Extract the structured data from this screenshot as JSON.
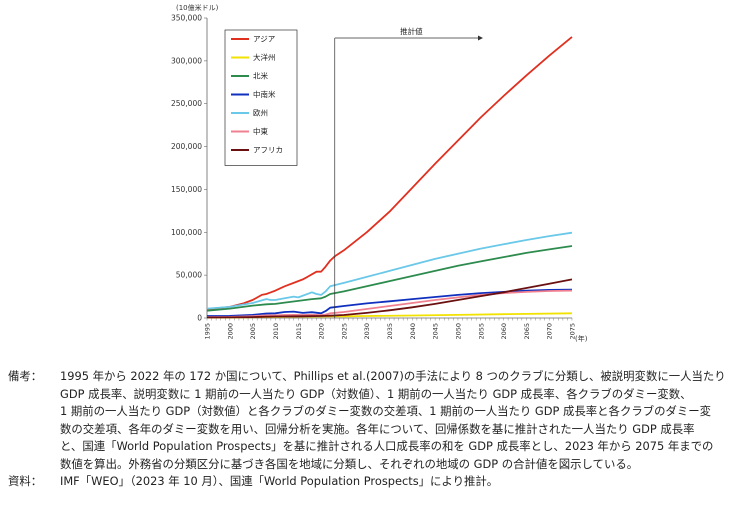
{
  "chart_data": {
    "type": "line",
    "y_unit": "(10億米ドル)",
    "x_unit": "(年)",
    "ylim": [
      0,
      350000
    ],
    "y_ticks": [
      "0",
      "50,000",
      "100,000",
      "150,000",
      "200,000",
      "250,000",
      "300,000",
      "350,000"
    ],
    "y_tick_values": [
      0,
      50000,
      100000,
      150000,
      200000,
      250000,
      300000,
      350000
    ],
    "xlim": [
      1995,
      2075
    ],
    "x_ticks": [
      "1995",
      "2000",
      "2005",
      "2010",
      "2015",
      "2020",
      "2025",
      "2030",
      "2035",
      "2040",
      "2045",
      "2050",
      "2055",
      "2060",
      "2065",
      "2070",
      "2075"
    ],
    "grid": false,
    "legend_placement": "top-left",
    "annotation": {
      "label": "推計値",
      "x": 2023
    },
    "series": [
      {
        "name": "アジア",
        "color": "#e03020",
        "x": [
          1995,
          2000,
          2003,
          2005,
          2007,
          2008,
          2009,
          2010,
          2012,
          2014,
          2016,
          2017,
          2018,
          2019,
          2020,
          2021,
          2022,
          2023,
          2025,
          2030,
          2035,
          2040,
          2045,
          2050,
          2055,
          2060,
          2065,
          2070,
          2075
        ],
        "y": [
          10000,
          13000,
          17000,
          21000,
          27000,
          28000,
          30000,
          32000,
          37000,
          41000,
          45000,
          48000,
          51000,
          54000,
          54000,
          60000,
          67000,
          72000,
          79000,
          100000,
          124000,
          152000,
          180000,
          207000,
          234000,
          259000,
          283000,
          306000,
          328000
        ]
      },
      {
        "name": "大洋州",
        "color": "#f2e200",
        "x": [
          1995,
          2000,
          2005,
          2010,
          2015,
          2020,
          2022,
          2025,
          2030,
          2040,
          2050,
          2060,
          2075
        ],
        "y": [
          500,
          600,
          900,
          1400,
          1600,
          1700,
          1900,
          2000,
          2300,
          2900,
          3600,
          4400,
          5500
        ]
      },
      {
        "name": "北米",
        "color": "#2e8b4e",
        "x": [
          1995,
          2000,
          2005,
          2008,
          2010,
          2012,
          2015,
          2018,
          2020,
          2021,
          2022,
          2025,
          2030,
          2035,
          2040,
          2045,
          2050,
          2055,
          2060,
          2065,
          2070,
          2075
        ],
        "y": [
          8500,
          11000,
          14500,
          16000,
          16500,
          18000,
          20000,
          22000,
          23000,
          25000,
          28000,
          31000,
          37000,
          43000,
          49000,
          55000,
          61000,
          66000,
          71000,
          76000,
          80000,
          84000
        ]
      },
      {
        "name": "中南米",
        "color": "#1030c0",
        "x": [
          1995,
          2000,
          2005,
          2008,
          2010,
          2012,
          2014,
          2016,
          2018,
          2020,
          2021,
          2022,
          2025,
          2030,
          2035,
          2040,
          2045,
          2050,
          2055,
          2060,
          2065,
          2070,
          2075
        ],
        "y": [
          2300,
          2500,
          3600,
          5200,
          5500,
          7000,
          7500,
          6000,
          6800,
          5500,
          8000,
          12000,
          14000,
          17000,
          19500,
          22000,
          24500,
          27000,
          29000,
          30500,
          32000,
          32800,
          33000
        ]
      },
      {
        "name": "欧州",
        "color": "#6ac8e8",
        "x": [
          1995,
          2000,
          2005,
          2008,
          2009,
          2010,
          2012,
          2014,
          2015,
          2018,
          2019,
          2020,
          2021,
          2022,
          2025,
          2030,
          2035,
          2040,
          2045,
          2050,
          2055,
          2060,
          2065,
          2070,
          2075
        ],
        "y": [
          11000,
          13000,
          17500,
          22000,
          21000,
          21000,
          23000,
          25000,
          24000,
          30000,
          28000,
          27000,
          31000,
          37000,
          41000,
          48000,
          55000,
          62000,
          69000,
          75000,
          81000,
          86000,
          91000,
          95500,
          99500
        ]
      },
      {
        "name": "中東",
        "color": "#f08090",
        "x": [
          1995,
          2000,
          2005,
          2008,
          2010,
          2012,
          2014,
          2016,
          2018,
          2020,
          2021,
          2022,
          2025,
          2030,
          2035,
          2040,
          2045,
          2050,
          2055,
          2060,
          2065,
          2070,
          2075
        ],
        "y": [
          1000,
          1300,
          2200,
          3000,
          3000,
          3500,
          3600,
          3500,
          3700,
          3400,
          4000,
          5500,
          7000,
          10500,
          14000,
          17500,
          21000,
          24000,
          27000,
          29000,
          30500,
          31500,
          32000
        ]
      },
      {
        "name": "アフリカ",
        "color": "#6a1010",
        "x": [
          1995,
          2000,
          2005,
          2010,
          2015,
          2020,
          2022,
          2025,
          2030,
          2035,
          2040,
          2045,
          2050,
          2055,
          2060,
          2065,
          2070,
          2075
        ],
        "y": [
          600,
          700,
          1000,
          1700,
          2000,
          2300,
          2700,
          3500,
          6000,
          9000,
          12500,
          16500,
          21000,
          25500,
          30000,
          35000,
          40000,
          45000
        ]
      }
    ]
  },
  "notes": {
    "biko_label": "備考：",
    "biko_lines": [
      "1995 年から 2022 年の 172 か国について、Phillips et al.(2007)の手法により 8 つのクラブに分類し、被説明変数に一人当たり",
      "GDP 成長率、説明変数に 1 期前の一人当たり GDP（対数値）、1 期前の一人当たり GDP 成長率、各クラブのダミー変数、",
      "1 期前の一人当たり GDP（対数値）と各クラブのダミー変数の交差項、1 期前の一人当たり GDP 成長率と各クラブのダミー変",
      "数の交差項、各年のダミー変数を用い、回帰分析を実施。各年について、回帰係数を基に推計された一人当たり GDP 成長率",
      "と、国連「World Population Prospects」を基に推計される人口成長率の和を GDP 成長率とし、2023 年から 2075 年までの",
      "数値を算出。外務省の分類区分に基づき各国を地域に分類し、それぞれの地域の GDP の合計値を図示している。"
    ],
    "source_label": "資料：",
    "source_text": "IMF「WEO」（2023 年 10 月）、国連「World Population Prospects」により推計。"
  }
}
